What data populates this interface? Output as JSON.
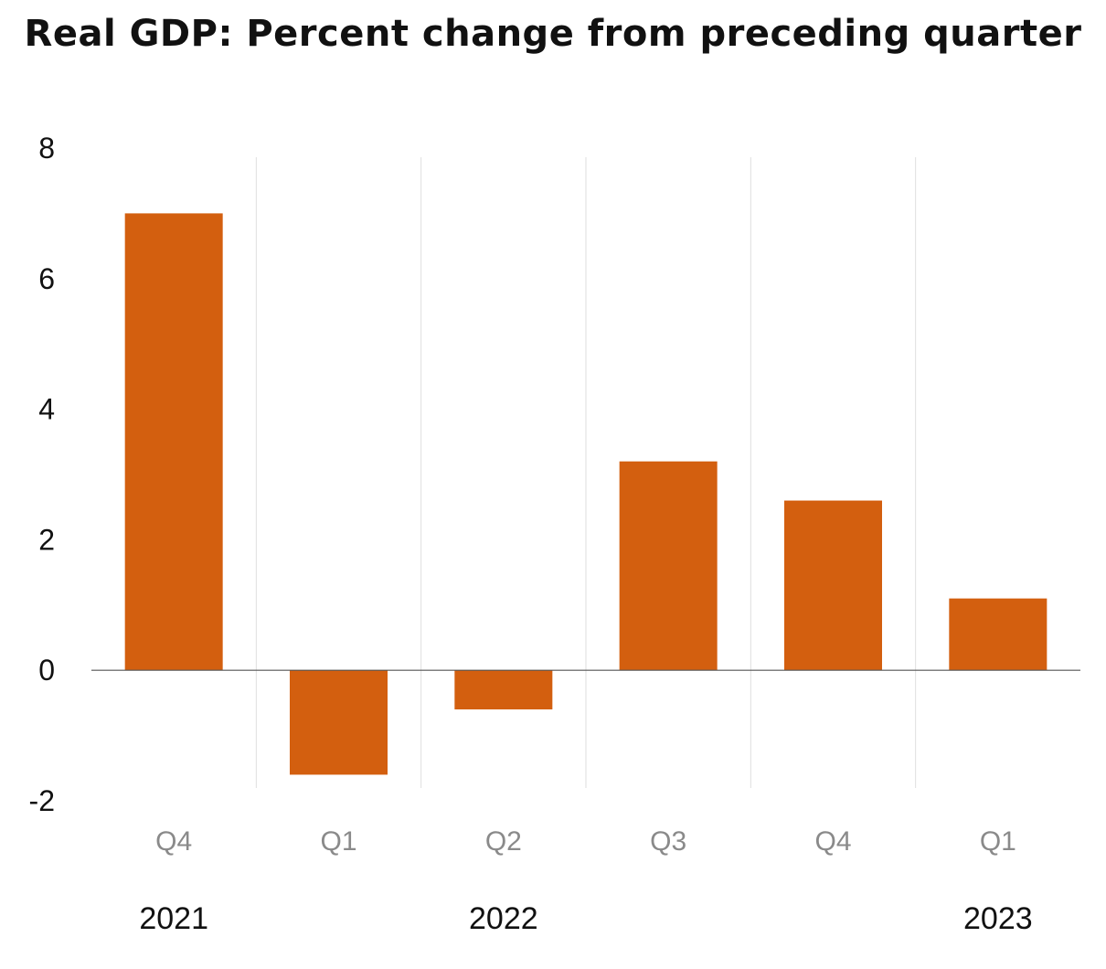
{
  "chart_data": {
    "type": "bar",
    "title": "Real GDP:  Percent change from preceding quarter",
    "xlabel": "",
    "ylabel": "",
    "categories": [
      "Q4",
      "Q1",
      "Q2",
      "Q3",
      "Q4",
      "Q1"
    ],
    "values": [
      7.0,
      -1.6,
      -0.6,
      3.2,
      2.6,
      1.1
    ],
    "years": [
      "2021",
      "2022",
      "2023"
    ],
    "ylim": [
      -2,
      8
    ],
    "yticks": [
      "8",
      "6",
      "4",
      "2",
      "0",
      "-2"
    ],
    "grid": "vertical separators between categories",
    "legend": "none",
    "bar_color": "#d35f0f",
    "axis_color": "#555555",
    "separator_color": "#dedede"
  }
}
